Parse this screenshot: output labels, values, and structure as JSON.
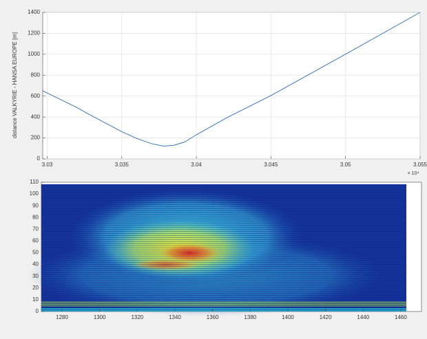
{
  "chart_data": [
    {
      "type": "line",
      "y_label": "distance VALKYRIE - HANSA EUROPE [m]",
      "x_exponent_label": "× 10⁴",
      "x": [
        30297,
        30310,
        30320,
        30330,
        30340,
        30350,
        30360,
        30370,
        30378,
        30385,
        30392,
        30400,
        30420,
        30450,
        30500,
        30550
      ],
      "values": [
        650,
        560,
        490,
        410,
        335,
        260,
        195,
        145,
        122,
        130,
        160,
        230,
        390,
        605,
        1000,
        1400
      ],
      "color": "#3b72b8",
      "xlim": [
        30297,
        30550
      ],
      "ylim": [
        0,
        1400
      ],
      "xticks": [
        {
          "value": 30300,
          "label": "3.03"
        },
        {
          "value": 30350,
          "label": "3.035"
        },
        {
          "value": 30400,
          "label": "3.04"
        },
        {
          "value": 30450,
          "label": "3.045"
        },
        {
          "value": 30500,
          "label": "3.05"
        },
        {
          "value": 30550,
          "label": "3.055"
        }
      ],
      "yticks": [
        0,
        200,
        400,
        600,
        800,
        1000,
        1200,
        1400
      ],
      "grid": true
    },
    {
      "type": "heatmap",
      "xlim": [
        1269,
        1471
      ],
      "ylim": [
        0,
        110
      ],
      "xticks": [
        1280,
        1300,
        1320,
        1340,
        1360,
        1380,
        1400,
        1420,
        1440,
        1460
      ],
      "yticks": [
        0,
        10,
        20,
        30,
        40,
        50,
        60,
        70,
        80,
        90,
        100,
        110
      ],
      "grid": false
    }
  ]
}
